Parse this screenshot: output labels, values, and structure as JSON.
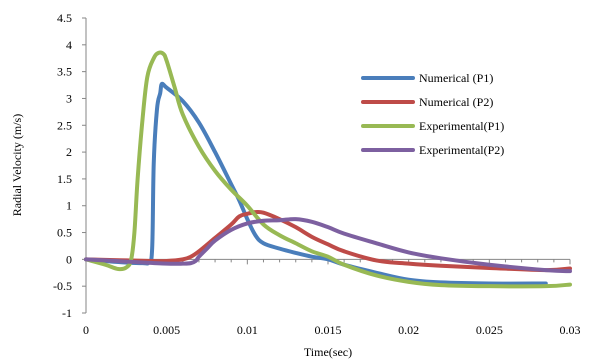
{
  "chart_data": {
    "type": "line",
    "xlabel": "Time(sec)",
    "ylabel": "Radial Velocity  (m/s)",
    "xlim": [
      0,
      0.03
    ],
    "ylim": [
      -1,
      4.5
    ],
    "xticks": [
      0,
      0.005,
      0.01,
      0.015,
      0.02,
      0.025,
      0.03
    ],
    "xtick_labels": [
      "0",
      "0.005",
      "0.01",
      "0.015",
      "0.02",
      "0.025",
      "0.03"
    ],
    "yticks": [
      -1,
      -0.5,
      0,
      0.5,
      1,
      1.5,
      2,
      2.5,
      3,
      3.5,
      4,
      4.5
    ],
    "ytick_labels": [
      "-1",
      "-0.5",
      "0",
      "0.5",
      "1",
      "1.5",
      "2",
      "2.5",
      "3",
      "3.5",
      "4",
      "4.5"
    ],
    "grid": false,
    "legend_position": "right",
    "series": [
      {
        "name": "Numerical (P1)",
        "color": "#4A7EBB",
        "x": [
          0,
          0.002,
          0.0035,
          0.0039,
          0.0041,
          0.0042,
          0.0044,
          0.0046,
          0.0047,
          0.005,
          0.006,
          0.007,
          0.008,
          0.009,
          0.0095,
          0.01,
          0.0105,
          0.011,
          0.012,
          0.013,
          0.014,
          0.015,
          0.016,
          0.018,
          0.02,
          0.022,
          0.025,
          0.0285
        ],
        "y": [
          0,
          -0.05,
          -0.07,
          -0.05,
          0.2,
          1.8,
          2.8,
          3.1,
          3.27,
          3.2,
          2.95,
          2.55,
          2.0,
          1.4,
          1.1,
          0.75,
          0.45,
          0.3,
          0.2,
          0.12,
          0.05,
          0.0,
          -0.1,
          -0.25,
          -0.38,
          -0.43,
          -0.45,
          -0.45
        ]
      },
      {
        "name": "Numerical (P2)",
        "color": "#BE4B48",
        "x": [
          0,
          0.004,
          0.005,
          0.006,
          0.0065,
          0.007,
          0.008,
          0.009,
          0.0095,
          0.01,
          0.0105,
          0.011,
          0.012,
          0.013,
          0.014,
          0.015,
          0.016,
          0.018,
          0.02,
          0.022,
          0.025,
          0.0285,
          0.03
        ],
        "y": [
          0,
          -0.03,
          -0.03,
          0.0,
          0.05,
          0.15,
          0.4,
          0.65,
          0.8,
          0.85,
          0.88,
          0.87,
          0.75,
          0.6,
          0.42,
          0.28,
          0.15,
          -0.02,
          -0.08,
          -0.12,
          -0.16,
          -0.2,
          -0.17
        ]
      },
      {
        "name": "Experimental(P1)",
        "color": "#98B954",
        "x": [
          0,
          0.0012,
          0.002,
          0.0025,
          0.0028,
          0.003,
          0.0032,
          0.0035,
          0.0038,
          0.0042,
          0.0045,
          0.0048,
          0.005,
          0.0055,
          0.006,
          0.007,
          0.008,
          0.009,
          0.01,
          0.011,
          0.012,
          0.013,
          0.014,
          0.015,
          0.016,
          0.018,
          0.02,
          0.022,
          0.025,
          0.0285,
          0.03
        ],
        "y": [
          0,
          -0.1,
          -0.18,
          -0.15,
          0.0,
          0.5,
          1.5,
          2.6,
          3.4,
          3.75,
          3.85,
          3.83,
          3.7,
          3.2,
          2.7,
          2.1,
          1.65,
          1.3,
          1.0,
          0.65,
          0.45,
          0.3,
          0.15,
          0.05,
          -0.1,
          -0.3,
          -0.42,
          -0.48,
          -0.5,
          -0.5,
          -0.47
        ]
      },
      {
        "name": "Experimental(P2)",
        "color": "#7D60A0",
        "x": [
          0,
          0.003,
          0.005,
          0.006,
          0.0065,
          0.0068,
          0.007,
          0.0075,
          0.008,
          0.009,
          0.01,
          0.011,
          0.012,
          0.013,
          0.014,
          0.015,
          0.016,
          0.018,
          0.02,
          0.022,
          0.025,
          0.0285,
          0.03
        ],
        "y": [
          0,
          -0.05,
          -0.08,
          -0.08,
          -0.07,
          -0.03,
          0.05,
          0.2,
          0.35,
          0.55,
          0.67,
          0.72,
          0.73,
          0.75,
          0.7,
          0.6,
          0.48,
          0.3,
          0.13,
          0.02,
          -0.1,
          -0.2,
          -0.22
        ]
      }
    ]
  }
}
